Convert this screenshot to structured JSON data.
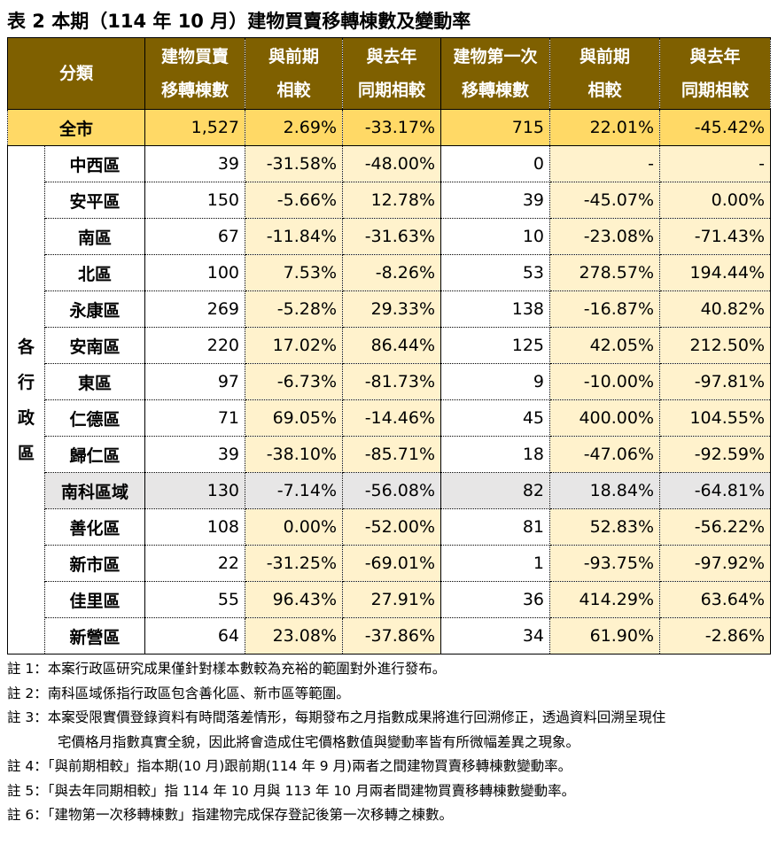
{
  "title": "表 2 本期（114 年 10 月）建物買賣移轉棟數及變動率",
  "headers": [
    [
      "分類"
    ],
    [
      "建物買賣",
      "移轉棟數"
    ],
    [
      "與前期",
      "相較"
    ],
    [
      "與去年",
      "同期相較"
    ],
    [
      "建物第一次",
      "移轉棟數"
    ],
    [
      "與前期",
      "相較"
    ],
    [
      "與去年",
      "同期相較"
    ]
  ],
  "total": {
    "name": "全市",
    "values": [
      "1,527",
      "2.69%",
      "-33.17%",
      "715",
      "22.01%",
      "-45.42%"
    ]
  },
  "side_label": [
    "各",
    "行",
    "政",
    "區"
  ],
  "rows": [
    {
      "name": "中西區",
      "values": [
        "39",
        "-31.58%",
        "-48.00%",
        "0",
        "-",
        "-"
      ]
    },
    {
      "name": "安平區",
      "values": [
        "150",
        "-5.66%",
        "12.78%",
        "39",
        "-45.07%",
        "0.00%"
      ]
    },
    {
      "name": "南區",
      "values": [
        "67",
        "-11.84%",
        "-31.63%",
        "10",
        "-23.08%",
        "-71.43%"
      ]
    },
    {
      "name": "北區",
      "values": [
        "100",
        "7.53%",
        "-8.26%",
        "53",
        "278.57%",
        "194.44%"
      ]
    },
    {
      "name": "永康區",
      "values": [
        "269",
        "-5.28%",
        "29.33%",
        "138",
        "-16.87%",
        "40.82%"
      ]
    },
    {
      "name": "安南區",
      "values": [
        "220",
        "17.02%",
        "86.44%",
        "125",
        "42.05%",
        "212.50%"
      ]
    },
    {
      "name": "東區",
      "values": [
        "97",
        "-6.73%",
        "-81.73%",
        "9",
        "-10.00%",
        "-97.81%"
      ]
    },
    {
      "name": "仁德區",
      "values": [
        "71",
        "69.05%",
        "-14.46%",
        "45",
        "400.00%",
        "104.55%"
      ]
    },
    {
      "name": "歸仁區",
      "values": [
        "39",
        "-38.10%",
        "-85.71%",
        "18",
        "-47.06%",
        "-92.59%"
      ]
    },
    {
      "name": "南科區域",
      "values": [
        "130",
        "-7.14%",
        "-56.08%",
        "82",
        "18.84%",
        "-64.81%"
      ]
    },
    {
      "name": "善化區",
      "values": [
        "108",
        "0.00%",
        "-52.00%",
        "81",
        "52.83%",
        "-56.22%"
      ]
    },
    {
      "name": "新市區",
      "values": [
        "22",
        "-31.25%",
        "-69.01%",
        "1",
        "-93.75%",
        "-97.92%"
      ]
    },
    {
      "name": "佳里區",
      "values": [
        "55",
        "96.43%",
        "27.91%",
        "36",
        "414.29%",
        "63.64%"
      ]
    },
    {
      "name": "新營區",
      "values": [
        "64",
        "23.08%",
        "-37.86%",
        "34",
        "61.90%",
        "-2.86%"
      ]
    }
  ],
  "colors": {
    "header_bg": "#7F6000",
    "total_bg": "#FFD966",
    "change_bg": "#FFF2CC",
    "highlight_row_bg": "#E7E6E6"
  },
  "notes": [
    "註 1：本案行政區研究成果僅針對樣本數較為充裕的範圍對外進行發布。",
    "註 2：南科區域係指行政區包含善化區、新市區等範圍。",
    "註 3：本案受限實價登錄資料有時間落差情形，每期發布之月指數成果將進行回溯修正，透過資料回溯呈現住",
    "宅價格月指數真實全貌，因此將會造成住宅價格數值與變動率皆有所微幅差異之現象。",
    "註 4：「與前期相較」指本期(10 月)跟前期(114 年 9 月)兩者之間建物買賣移轉棟數變動率。",
    "註 5：「與去年同期相較」指 114 年 10 月與 113 年 10 月兩者間建物買賣移轉棟數變動率。",
    "註 6：「建物第一次移轉棟數」指建物完成保存登記後第一次移轉之棟數。"
  ]
}
